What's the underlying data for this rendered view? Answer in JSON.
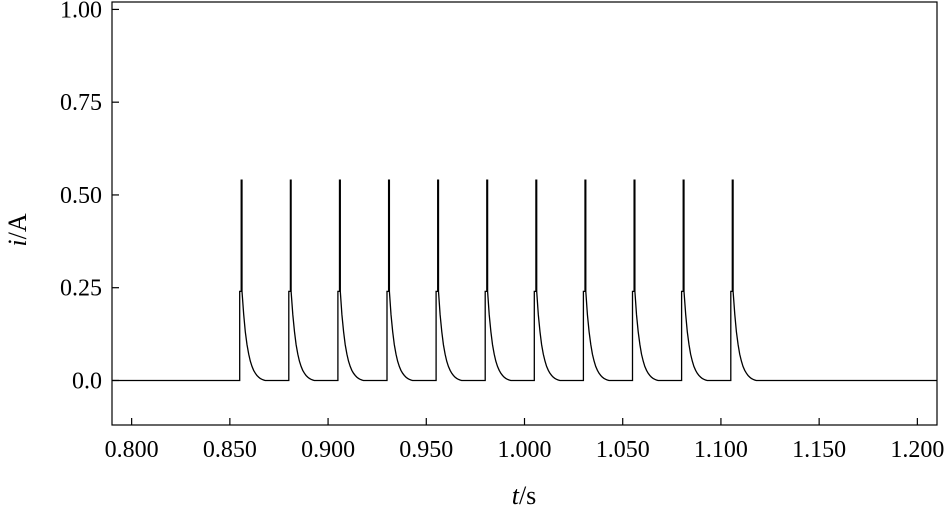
{
  "chart_data": {
    "type": "line",
    "title": "",
    "xlabel_var": "t",
    "xlabel_unit": "/s",
    "ylabel_var": "i",
    "ylabel_unit": "/A",
    "xlim": [
      0.79,
      1.21
    ],
    "ylim": [
      -0.12,
      1.02
    ],
    "x_ticks": [
      0.8,
      0.85,
      0.9,
      0.95,
      1.0,
      1.05,
      1.1,
      1.15,
      1.2
    ],
    "x_tick_labels": [
      "0.800",
      "0.850",
      "0.900",
      "0.950",
      "1.000",
      "1.050",
      "1.100",
      "1.150",
      "1.200"
    ],
    "y_ticks": [
      0.0,
      0.25,
      0.5,
      0.75,
      1.0
    ],
    "y_tick_labels": [
      "0.0",
      "0.25",
      "0.50",
      "0.75",
      "1.00"
    ],
    "grid": false,
    "line_color": "#000000",
    "series": [
      {
        "pulse_times": [
          0.855,
          0.88,
          0.905,
          0.93,
          0.955,
          0.98,
          1.005,
          1.03,
          1.055,
          1.08,
          1.105
        ],
        "pulse_peak": 0.54,
        "pulse_step_level": 0.24,
        "baseline": 0.0,
        "decay_duration": 0.013,
        "x_start": 0.79,
        "x_end": 1.21
      }
    ]
  }
}
